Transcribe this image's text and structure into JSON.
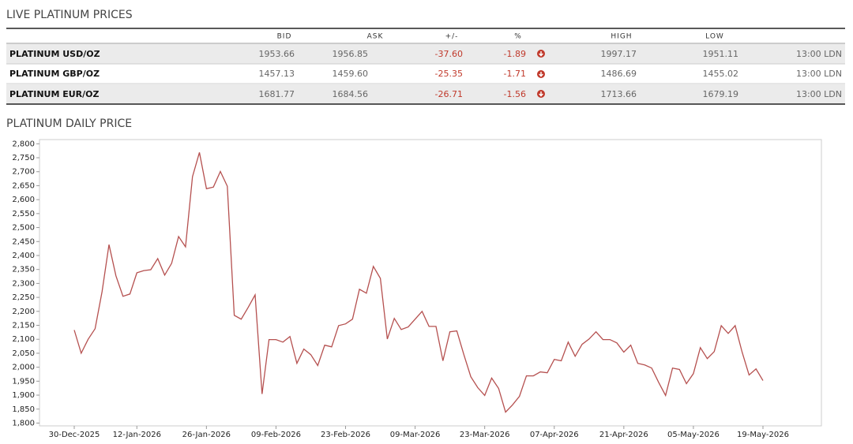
{
  "header": {
    "title": "LIVE PLATINUM PRICES"
  },
  "table": {
    "columns": [
      "BID",
      "ASK",
      "+/-",
      "%",
      "HIGH",
      "LOW"
    ],
    "rows": [
      [
        "PLATINUM USD/OZ",
        "1953.66",
        "1956.85",
        "-37.60",
        "-1.89",
        "1997.17",
        "1951.11",
        "13:00 LDN"
      ],
      [
        "PLATINUM GBP/OZ",
        "1457.13",
        "1459.60",
        "-25.35",
        "-1.71",
        "1486.69",
        "1455.02",
        "13:00 LDN"
      ],
      [
        "PLATINUM EUR/OZ",
        "1681.77",
        "1684.56",
        "-26.71",
        "-1.56",
        "1713.66",
        "1679.19",
        "13:00 LDN"
      ]
    ]
  },
  "chart_data": {
    "type": "line",
    "title": "PLATINUM DAILY PRICE",
    "color": "#b5504f",
    "categories": [
      "30-Dec-2025",
      null,
      null,
      null,
      null,
      null,
      null,
      null,
      null,
      "12-Jan-2026",
      null,
      null,
      null,
      null,
      null,
      null,
      null,
      null,
      null,
      "26-Jan-2026",
      null,
      null,
      null,
      null,
      null,
      null,
      null,
      null,
      null,
      "09-Feb-2026",
      null,
      null,
      null,
      null,
      null,
      null,
      null,
      null,
      null,
      "23-Feb-2026",
      null,
      null,
      null,
      null,
      null,
      null,
      null,
      null,
      null,
      "09-Mar-2026",
      null,
      null,
      null,
      null,
      null,
      null,
      null,
      null,
      null,
      "23-Mar-2026",
      null,
      null,
      null,
      null,
      null,
      null,
      null,
      null,
      null,
      "07-Apr-2026",
      null,
      null,
      null,
      null,
      null,
      null,
      null,
      null,
      null,
      "21-Apr-2026",
      null,
      null,
      null,
      null,
      null,
      null,
      null,
      null,
      null,
      "05-May-2026",
      null,
      null,
      null,
      null,
      null,
      null,
      null,
      null,
      null,
      "19-May-2026"
    ],
    "values": [
      2133,
      2050,
      2100,
      2138,
      2270,
      2439,
      2327,
      2254,
      2262,
      2338,
      2346,
      2349,
      2389,
      2330,
      2372,
      2468,
      2431,
      2682,
      2769,
      2639,
      2645,
      2701,
      2648,
      2186,
      2172,
      2214,
      2259,
      1904,
      2099,
      2099,
      2090,
      2110,
      2014,
      2065,
      2045,
      2006,
      2079,
      2073,
      2149,
      2155,
      2172,
      2279,
      2265,
      2361,
      2318,
      2101,
      2175,
      2135,
      2144,
      2172,
      2200,
      2146,
      2146,
      2023,
      2127,
      2130,
      2045,
      1966,
      1927,
      1899,
      1961,
      1924,
      1839,
      1865,
      1896,
      1969,
      1969,
      1983,
      1980,
      2028,
      2023,
      2090,
      2039,
      2082,
      2101,
      2127,
      2099,
      2099,
      2087,
      2054,
      2079,
      2014,
      2008,
      1997,
      1946,
      1899,
      1997,
      1992,
      1941,
      1977,
      2070,
      2031,
      2056,
      2149,
      2121,
      2149,
      2054,
      1972,
      1994,
      1952
    ],
    "ylim": [
      1790,
      2815
    ],
    "yticks": [
      {
        "value": 1800,
        "label": "1,800"
      },
      {
        "value": 1850,
        "label": "1,850"
      },
      {
        "value": 1900,
        "label": "1,900"
      },
      {
        "value": 1950,
        "label": "1,950"
      },
      {
        "value": 2000,
        "label": "2,000"
      },
      {
        "value": 2050,
        "label": "2,050"
      },
      {
        "value": 2100,
        "label": "2,100"
      },
      {
        "value": 2150,
        "label": "2,150"
      },
      {
        "value": 2200,
        "label": "2,200"
      },
      {
        "value": 2250,
        "label": "2,250"
      },
      {
        "value": 2300,
        "label": "2,300"
      },
      {
        "value": 2350,
        "label": "2,350"
      },
      {
        "value": 2400,
        "label": "2,400"
      },
      {
        "value": 2450,
        "label": "2,450"
      },
      {
        "value": 2500,
        "label": "2,500"
      },
      {
        "value": 2550,
        "label": "2,550"
      },
      {
        "value": 2600,
        "label": "2,600"
      },
      {
        "value": 2650,
        "label": "2,650"
      },
      {
        "value": 2700,
        "label": "2,700"
      },
      {
        "value": 2750,
        "label": "2,750"
      },
      {
        "value": 2800,
        "label": "2,800"
      }
    ]
  }
}
